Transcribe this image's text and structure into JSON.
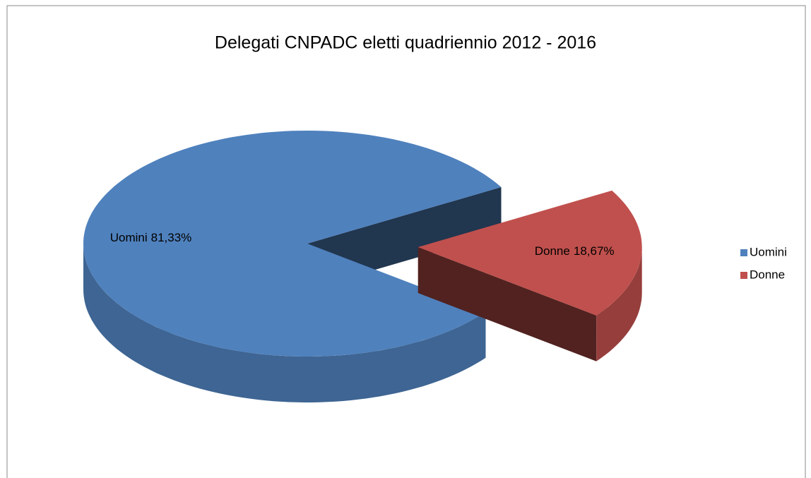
{
  "chart_data": {
    "type": "pie",
    "title": "Delegati CNPADC eletti quadriennio 2012 - 2016",
    "categories": [
      "Uomini",
      "Donne"
    ],
    "values": [
      81.33,
      18.67
    ],
    "value_labels": [
      "81,33%",
      "18,67%"
    ],
    "colors": [
      "#4f81bd",
      "#c0504d"
    ],
    "legend": "right"
  }
}
